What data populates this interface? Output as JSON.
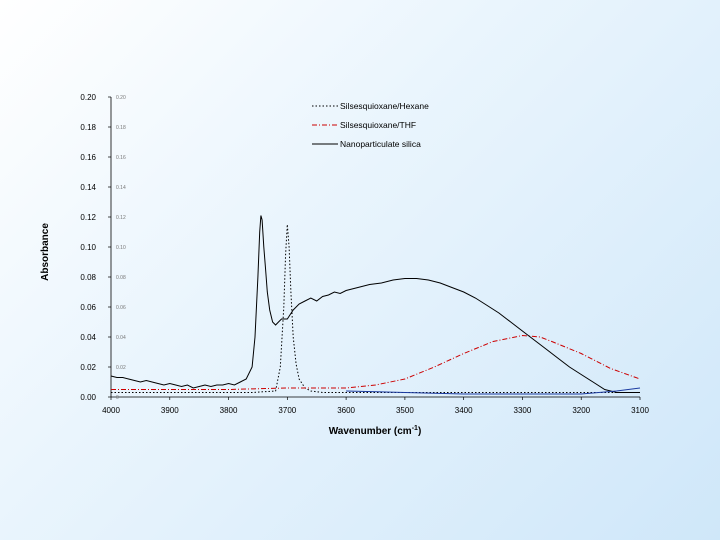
{
  "chart_data": {
    "type": "line",
    "xlabel": "Wavenumber (cm",
    "xlabel_sup": "-1",
    "xlabel_suffix": ")",
    "ylabel": "Absorbance",
    "xlim": [
      4000,
      3100
    ],
    "ylim": [
      0,
      0.2
    ],
    "x_ticks": [
      "4000",
      "3900",
      "3800",
      "3700",
      "3600",
      "3500",
      "3400",
      "3300",
      "3200",
      "3100"
    ],
    "y_ticks": [
      "0.00",
      "0.02",
      "0.04",
      "0.06",
      "0.08",
      "0.10",
      "0.12",
      "0.14",
      "0.16",
      "0.18",
      "0.20"
    ],
    "grid": false,
    "legend_position": "top-right",
    "series": [
      {
        "name": "Silsesquioxane/Hexane",
        "color": "#000000",
        "dash": "dotted",
        "x": [
          4000,
          3900,
          3800,
          3760,
          3720,
          3712,
          3706,
          3703,
          3700,
          3697,
          3694,
          3690,
          3685,
          3680,
          3670,
          3660,
          3640,
          3600,
          3500,
          3400,
          3300,
          3200,
          3100
        ],
        "y": [
          0.003,
          0.003,
          0.003,
          0.003,
          0.004,
          0.02,
          0.06,
          0.095,
          0.115,
          0.1,
          0.07,
          0.04,
          0.022,
          0.012,
          0.006,
          0.004,
          0.003,
          0.003,
          0.003,
          0.003,
          0.003,
          0.003,
          0.003
        ]
      },
      {
        "name": "Silsesquioxane/THF",
        "color": "#cc0000",
        "dash": "dashdot",
        "x": [
          4000,
          3900,
          3800,
          3700,
          3600,
          3550,
          3500,
          3450,
          3400,
          3350,
          3300,
          3270,
          3250,
          3200,
          3150,
          3100
        ],
        "y": [
          0.005,
          0.005,
          0.005,
          0.006,
          0.006,
          0.008,
          0.012,
          0.02,
          0.029,
          0.037,
          0.041,
          0.04,
          0.037,
          0.029,
          0.019,
          0.012
        ]
      },
      {
        "name": "Nanoparticulate silica",
        "color": "#000000",
        "dash": "solid",
        "x": [
          4000,
          3990,
          3980,
          3970,
          3960,
          3950,
          3940,
          3930,
          3920,
          3910,
          3900,
          3890,
          3880,
          3870,
          3860,
          3850,
          3840,
          3830,
          3820,
          3810,
          3800,
          3790,
          3780,
          3770,
          3760,
          3755,
          3750,
          3747,
          3745,
          3743,
          3740,
          3737,
          3734,
          3730,
          3725,
          3720,
          3715,
          3710,
          3700,
          3690,
          3680,
          3670,
          3660,
          3650,
          3640,
          3630,
          3620,
          3610,
          3600,
          3580,
          3560,
          3540,
          3520,
          3500,
          3480,
          3460,
          3440,
          3420,
          3400,
          3380,
          3360,
          3340,
          3320,
          3300,
          3280,
          3260,
          3240,
          3220,
          3200,
          3180,
          3160,
          3140,
          3120,
          3100
        ],
        "y": [
          0.014,
          0.013,
          0.013,
          0.012,
          0.011,
          0.01,
          0.011,
          0.01,
          0.009,
          0.008,
          0.009,
          0.008,
          0.007,
          0.008,
          0.006,
          0.007,
          0.008,
          0.007,
          0.008,
          0.008,
          0.009,
          0.008,
          0.01,
          0.012,
          0.02,
          0.04,
          0.08,
          0.11,
          0.121,
          0.118,
          0.1,
          0.085,
          0.07,
          0.058,
          0.05,
          0.048,
          0.05,
          0.052,
          0.052,
          0.058,
          0.062,
          0.064,
          0.066,
          0.064,
          0.067,
          0.068,
          0.07,
          0.069,
          0.071,
          0.073,
          0.075,
          0.076,
          0.078,
          0.079,
          0.079,
          0.078,
          0.076,
          0.073,
          0.07,
          0.066,
          0.061,
          0.056,
          0.05,
          0.044,
          0.038,
          0.032,
          0.026,
          0.02,
          0.015,
          0.01,
          0.005,
          0.003,
          0.003,
          0.003
        ]
      }
    ]
  },
  "tiny_tick_marks": [
    "0.20",
    "0.18",
    "0.16",
    "0.14",
    "0.12",
    "0.10",
    "0.08",
    "0.06",
    "0.04",
    "0.02",
    "0"
  ]
}
